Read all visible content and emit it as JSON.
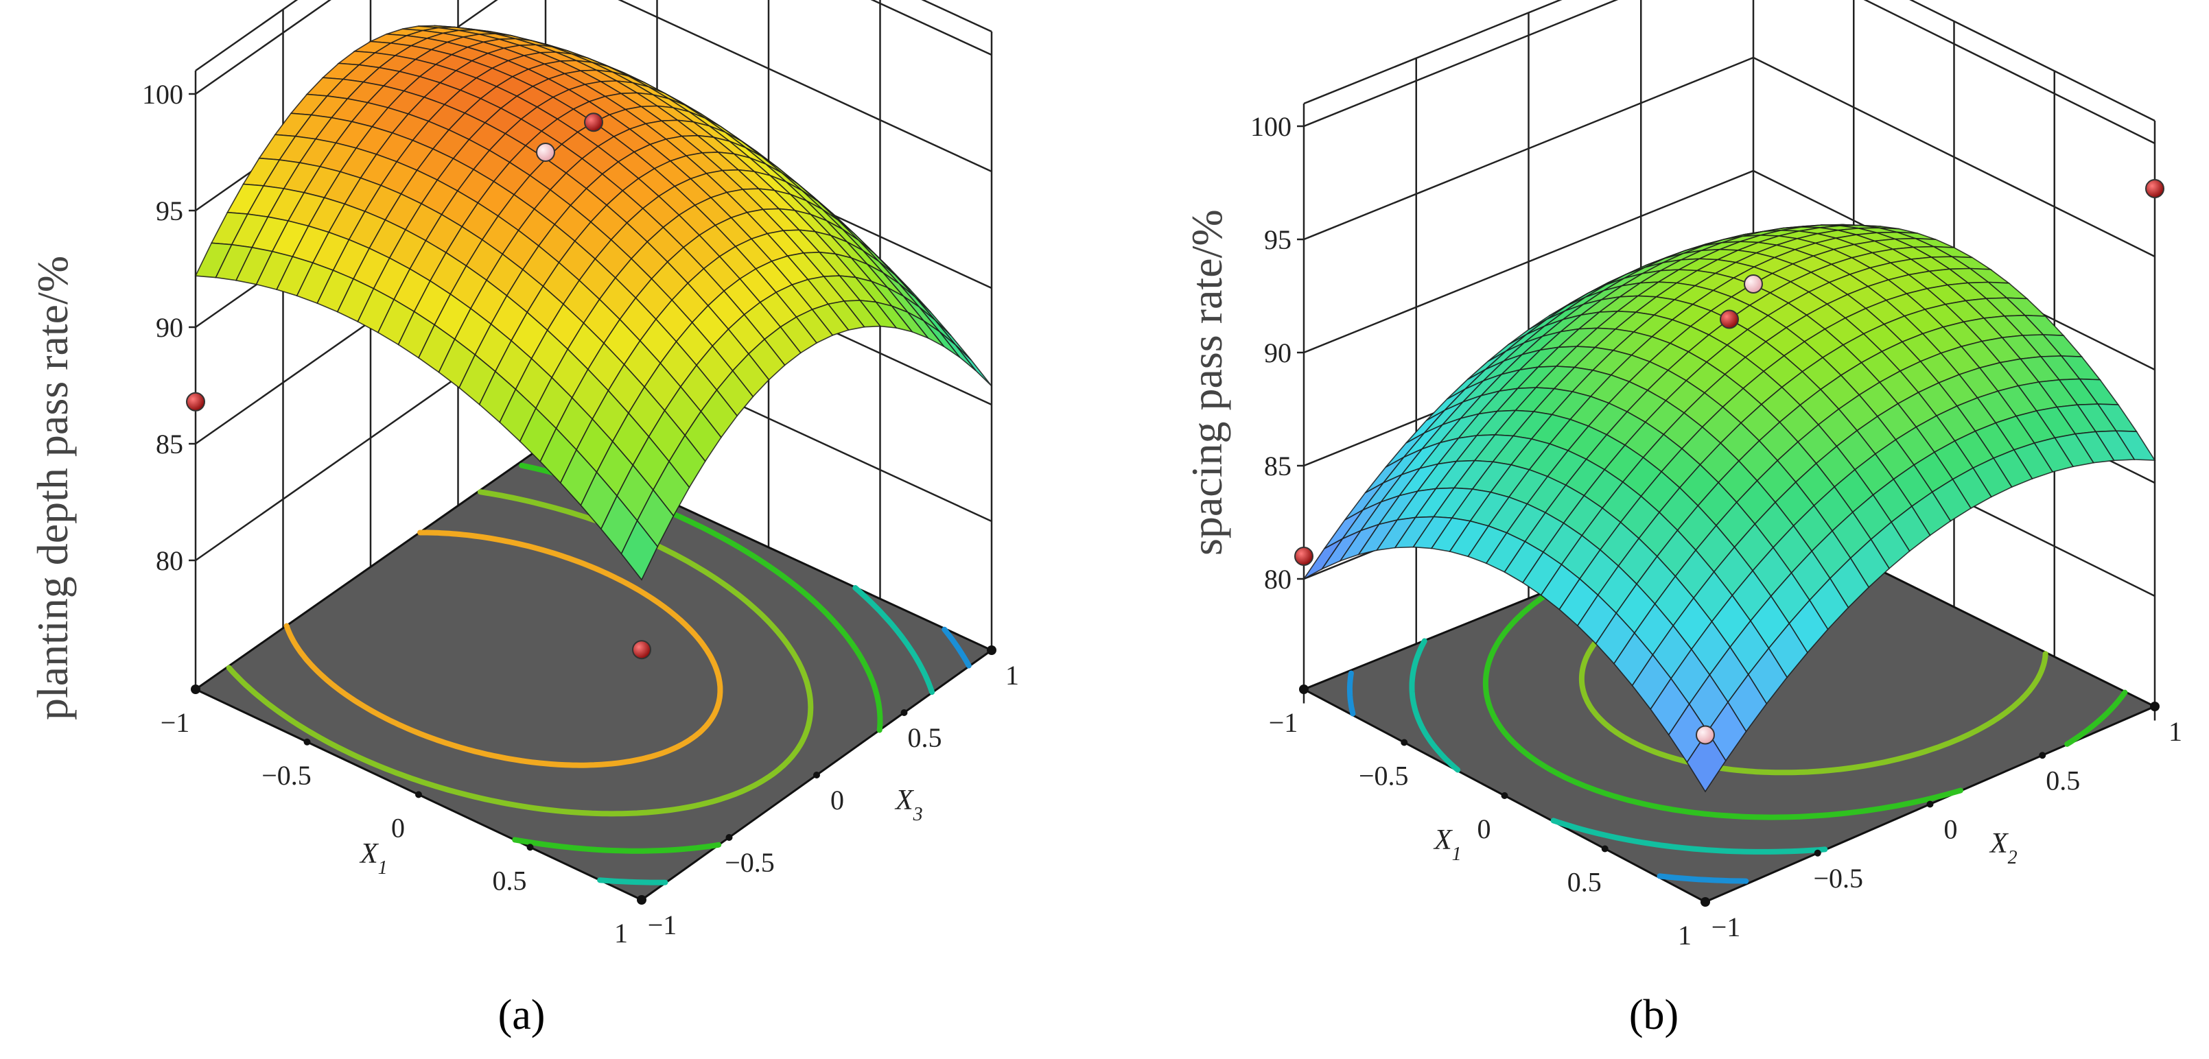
{
  "chart_data": [
    {
      "type": "surface3d",
      "panel_label": "(a)",
      "zlabel": "planting depth pass rate/%",
      "zticks": [
        "80",
        "85",
        "90",
        "95",
        "100"
      ],
      "zlim": [
        78,
        100
      ],
      "x_axis": {
        "name": "X",
        "sub": "1",
        "ticks": [
          "−1",
          "−0.5",
          "0",
          "0.5",
          "1"
        ],
        "range": [
          -1,
          1
        ]
      },
      "y_axis": {
        "name": "X",
        "sub": "3",
        "ticks": [
          "−1",
          "−0.5",
          "0",
          "0.5",
          "1"
        ],
        "range": [
          -1,
          1
        ]
      },
      "surface_model": {
        "form": "quadratic",
        "c": 98.0,
        "a": -2.0,
        "b": -1.2,
        "cxx": -3.0,
        "cyy": -6.0,
        "cxy": 0.0
      },
      "corner_points": [
        {
          "x": -1,
          "y": -1,
          "z": 86.8,
          "color": "#b81414"
        },
        {
          "x": 1,
          "y": -1,
          "z": 85.2,
          "color": "#b81414"
        },
        {
          "x": -1,
          "y": 1,
          "z": 87.0,
          "color": "#f2b8c0"
        },
        {
          "x": 0,
          "y": 0,
          "z": 98.0,
          "color": "#b81414"
        }
      ],
      "contours": [
        {
          "color": "#f2a91f"
        },
        {
          "color": "#86c423"
        },
        {
          "color": "#2fc21f"
        },
        {
          "color": "#12bfa0"
        },
        {
          "color": "#1a8fd6"
        },
        {
          "color": "#1d48d9"
        }
      ],
      "grid": true
    },
    {
      "type": "surface3d",
      "panel_label": "(b)",
      "zlabel": "spacing pass rate/%",
      "zticks": [
        "80",
        "85",
        "90",
        "95",
        "100"
      ],
      "zlim": [
        78,
        100
      ],
      "x_axis": {
        "name": "X",
        "sub": "1",
        "ticks": [
          "−1",
          "−0.5",
          "0",
          "0.5",
          "1"
        ],
        "range": [
          -1,
          1
        ]
      },
      "y_axis": {
        "name": "X",
        "sub": "2",
        "ticks": [
          "−1",
          "−0.5",
          "0",
          "0.5",
          "1"
        ],
        "range": [
          -1,
          1
        ]
      },
      "surface_model": {
        "form": "quadratic",
        "c": 92.0,
        "a": 0.0,
        "b": 3.0,
        "cxx": -5.0,
        "cyy": -4.0,
        "cxy": 0.0
      },
      "corner_points": [
        {
          "x": -1,
          "y": -1,
          "z": 81.0,
          "color": "#b81414"
        },
        {
          "x": 1,
          "y": -1,
          "z": 82.5,
          "color": "#f2b8c0"
        },
        {
          "x": -1,
          "y": 1,
          "z": 85.0,
          "color": "#f2b8c0"
        },
        {
          "x": 1,
          "y": 1,
          "z": 98.0,
          "color": "#b81414"
        },
        {
          "x": 0,
          "y": 0,
          "z": 92.0,
          "color": "#b81414"
        }
      ],
      "contours": [
        {
          "color": "#86c423"
        },
        {
          "color": "#2fc21f"
        },
        {
          "color": "#12bfa0"
        },
        {
          "color": "#1a8fd6"
        },
        {
          "color": "#1d48d9"
        }
      ],
      "grid": true
    }
  ]
}
